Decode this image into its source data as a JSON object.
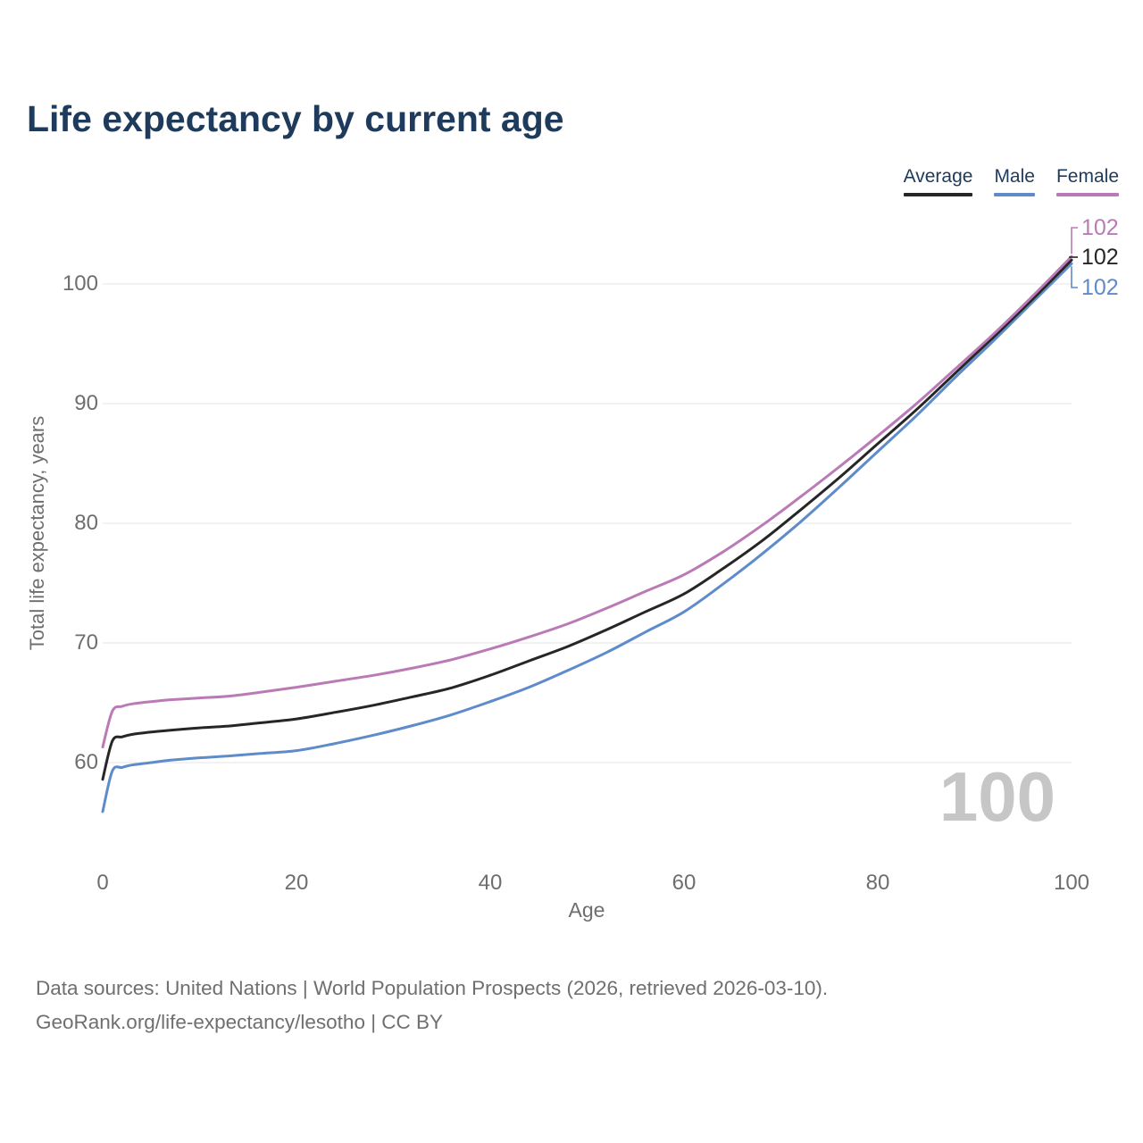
{
  "colors": {
    "background": "#ffffff",
    "title_text": "#1f3b5c",
    "legend_text": "#1e3a5a",
    "axis_text": "#6e6e6e",
    "grid": "#e9e9e9",
    "watermark": "#c6c6c6"
  },
  "chart_data": {
    "type": "line",
    "title": "Life expectancy by current age",
    "xlabel": "Age",
    "ylabel": "Total life expectancy, years",
    "x_ticks": [
      0,
      20,
      40,
      60,
      80,
      100
    ],
    "y_ticks": [
      60,
      70,
      80,
      90,
      100
    ],
    "xlim": [
      0,
      100
    ],
    "ylim": [
      55,
      105
    ],
    "grid": "horizontal",
    "legend_position": "top-right",
    "age_watermark": "100",
    "x": [
      0,
      1,
      2,
      3,
      5,
      7,
      10,
      13,
      16,
      20,
      24,
      28,
      32,
      36,
      40,
      44,
      48,
      52,
      56,
      60,
      64,
      68,
      72,
      76,
      80,
      84,
      88,
      92,
      96,
      100
    ],
    "series": [
      {
        "name": "Average",
        "color": "#262626",
        "end_label": "102",
        "values": [
          58.6,
          61.8,
          62.15,
          62.35,
          62.55,
          62.7,
          62.9,
          63.05,
          63.3,
          63.65,
          64.2,
          64.8,
          65.5,
          66.25,
          67.3,
          68.5,
          69.7,
          71.1,
          72.6,
          74.1,
          76.2,
          78.5,
          81.1,
          83.8,
          86.65,
          89.5,
          92.55,
          95.6,
          98.75,
          102.0
        ]
      },
      {
        "name": "Male",
        "color": "#5e8bc9",
        "end_label": "102",
        "values": [
          55.9,
          59.3,
          59.6,
          59.8,
          60.0,
          60.2,
          60.4,
          60.55,
          60.75,
          61.0,
          61.6,
          62.3,
          63.1,
          64.0,
          65.1,
          66.3,
          67.7,
          69.2,
          70.9,
          72.6,
          74.9,
          77.4,
          80.1,
          83.0,
          86.0,
          89.0,
          92.2,
          95.3,
          98.5,
          101.7
        ]
      },
      {
        "name": "Female",
        "color": "#ba7ab6",
        "end_label": "102",
        "values": [
          61.3,
          64.3,
          64.7,
          64.9,
          65.1,
          65.25,
          65.4,
          65.55,
          65.85,
          66.3,
          66.8,
          67.3,
          67.9,
          68.6,
          69.5,
          70.5,
          71.6,
          72.9,
          74.3,
          75.7,
          77.6,
          79.8,
          82.2,
          84.7,
          87.3,
          90.0,
          92.9,
          95.85,
          99.0,
          102.3
        ]
      }
    ]
  },
  "source": {
    "line1": "Data sources: United Nations | World Population Prospects (2026, retrieved 2026-03-10).",
    "line2": "GeoRank.org/life-expectancy/lesotho | CC BY"
  }
}
